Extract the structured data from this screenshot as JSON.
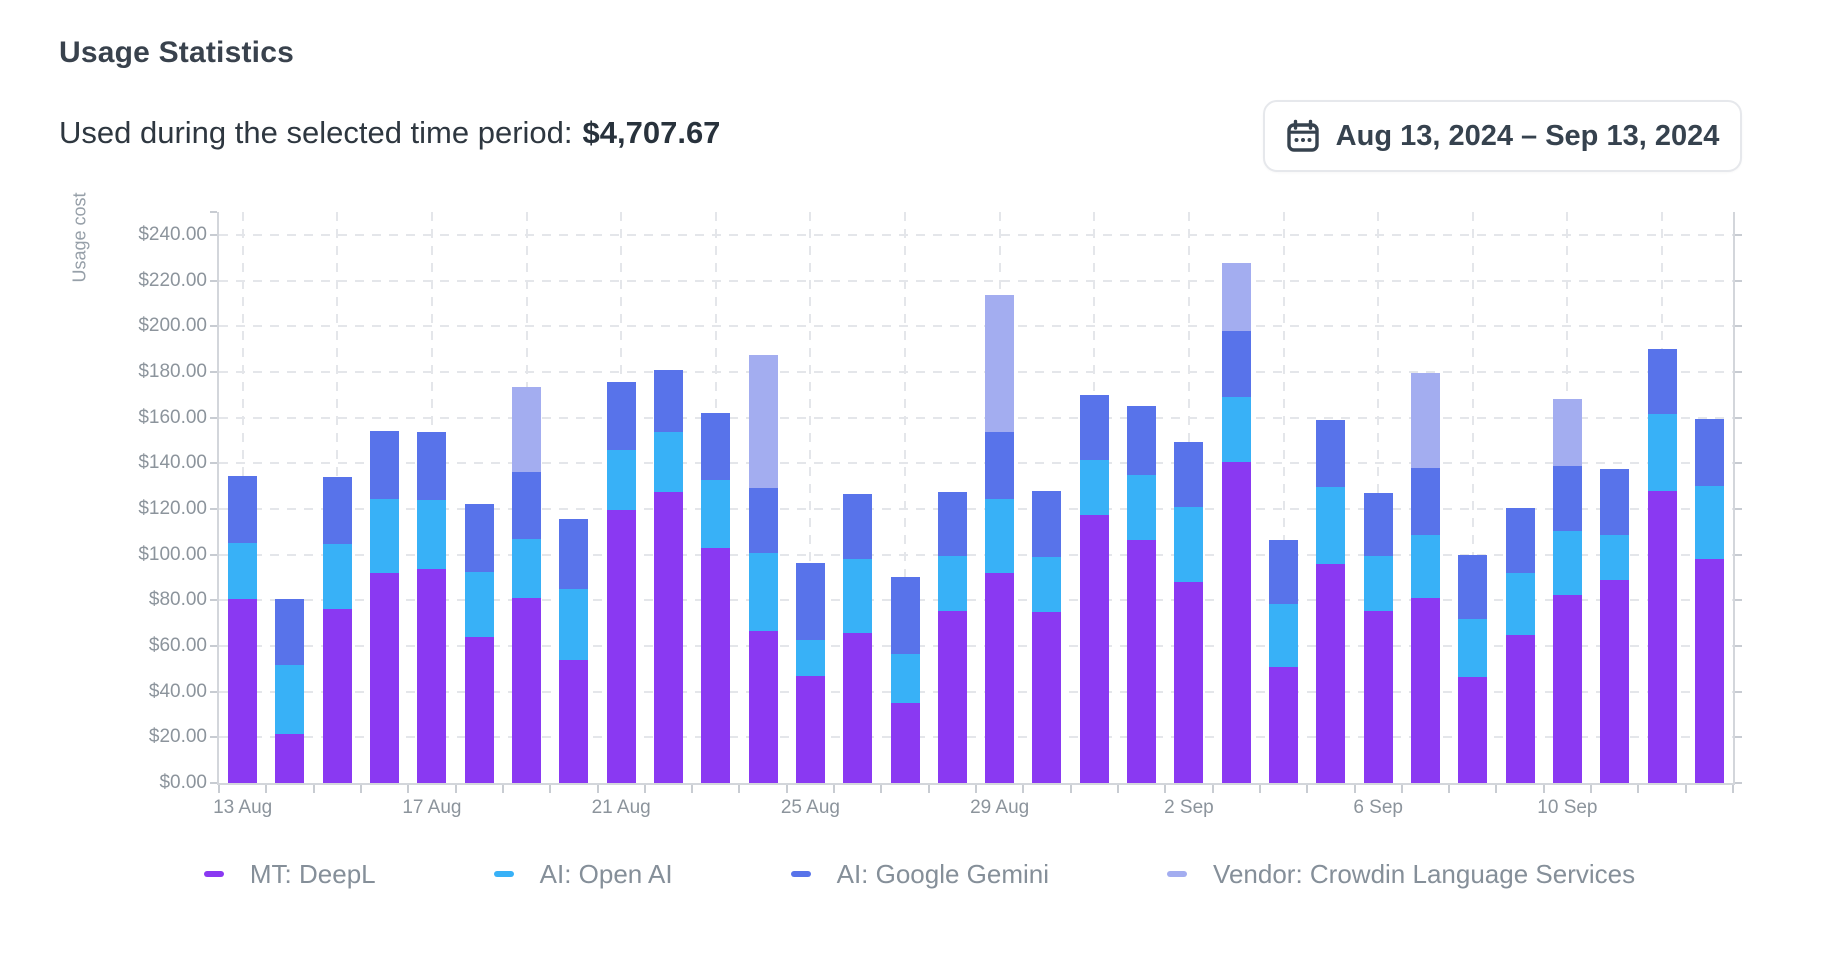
{
  "header": {
    "title": "Usage Statistics",
    "summary_label": "Used during the selected time period:",
    "summary_amount": "$4,707.67",
    "date_range": "Aug 13, 2024 – Sep 13, 2024"
  },
  "colors": {
    "deepl": "#8a39f2",
    "openai": "#38b1f7",
    "gemini": "#5873ea",
    "vendor": "#a3adf0",
    "grid": "#e4e6ea",
    "axis": "#d3d6db",
    "tick_text": "#8c949c",
    "legend_text": "#858f99"
  },
  "chart_data": {
    "type": "bar",
    "stacked": true,
    "ylabel": "Usage cost",
    "ylim": [
      0,
      250
    ],
    "grid": true,
    "legend_position": "bottom",
    "y_tick_values": [
      0,
      20,
      40,
      60,
      80,
      100,
      120,
      140,
      160,
      180,
      200,
      220,
      240
    ],
    "y_tick_labels": [
      "$0.00",
      "$20.00",
      "$40.00",
      "$60.00",
      "$80.00",
      "$100.00",
      "$120.00",
      "$140.00",
      "$160.00",
      "$180.00",
      "$200.00",
      "$220.00",
      "$240.00"
    ],
    "x_label_every": 4,
    "x_axis_labels": [
      "13 Aug",
      "17 Aug",
      "21 Aug",
      "25 Aug",
      "29 Aug",
      "2 Sep",
      "6 Sep",
      "10 Sep"
    ],
    "categories": [
      "13 Aug",
      "14 Aug",
      "15 Aug",
      "16 Aug",
      "17 Aug",
      "18 Aug",
      "19 Aug",
      "20 Aug",
      "21 Aug",
      "22 Aug",
      "23 Aug",
      "24 Aug",
      "25 Aug",
      "26 Aug",
      "27 Aug",
      "28 Aug",
      "29 Aug",
      "30 Aug",
      "31 Aug",
      "1 Sep",
      "2 Sep",
      "3 Sep",
      "4 Sep",
      "5 Sep",
      "6 Sep",
      "7 Sep",
      "8 Sep",
      "9 Sep",
      "10 Sep",
      "11 Sep",
      "12 Sep",
      "13 Sep"
    ],
    "series": [
      {
        "name": "MT: DeepL",
        "color_key": "deepl",
        "values": [
          80.5,
          21.5,
          76,
          92,
          93.5,
          64,
          81,
          54,
          119.5,
          127.5,
          103,
          66.5,
          47,
          65.5,
          35,
          75.5,
          92,
          75,
          117.5,
          106.5,
          88,
          140.5,
          51,
          96,
          75.5,
          81,
          46.5,
          65,
          82.5,
          89,
          128,
          98
        ]
      },
      {
        "name": "AI: Open AI",
        "color_key": "openai",
        "values": [
          24.5,
          30,
          28.5,
          32.5,
          30.5,
          28.5,
          26,
          31,
          26.5,
          26,
          29.5,
          34,
          15.5,
          32.5,
          21.5,
          24,
          32.5,
          24,
          24,
          28.5,
          33,
          28.5,
          27.5,
          33.5,
          24,
          27.5,
          25.5,
          27,
          28,
          19.5,
          33.5,
          32
        ]
      },
      {
        "name": "AI: Google Gemini",
        "color_key": "gemini",
        "values": [
          29.5,
          29,
          29.5,
          29.5,
          29.5,
          29.5,
          29,
          30.5,
          29.5,
          27.5,
          29.5,
          28.5,
          34,
          28.5,
          33.5,
          28,
          29,
          29,
          28.5,
          30,
          28.5,
          29,
          28,
          29.5,
          27.5,
          29.5,
          28,
          28.5,
          28.5,
          29,
          28.5,
          29.5
        ]
      },
      {
        "name": "Vendor: Crowdin Language Services",
        "color_key": "vendor",
        "values": [
          0,
          0,
          0,
          0,
          0,
          0,
          37.5,
          0,
          0,
          0,
          0,
          58.5,
          0,
          0,
          0,
          0,
          60,
          0,
          0,
          0,
          0,
          29.5,
          0,
          0,
          0,
          41.5,
          0,
          0,
          29,
          0,
          0,
          0
        ]
      }
    ]
  }
}
